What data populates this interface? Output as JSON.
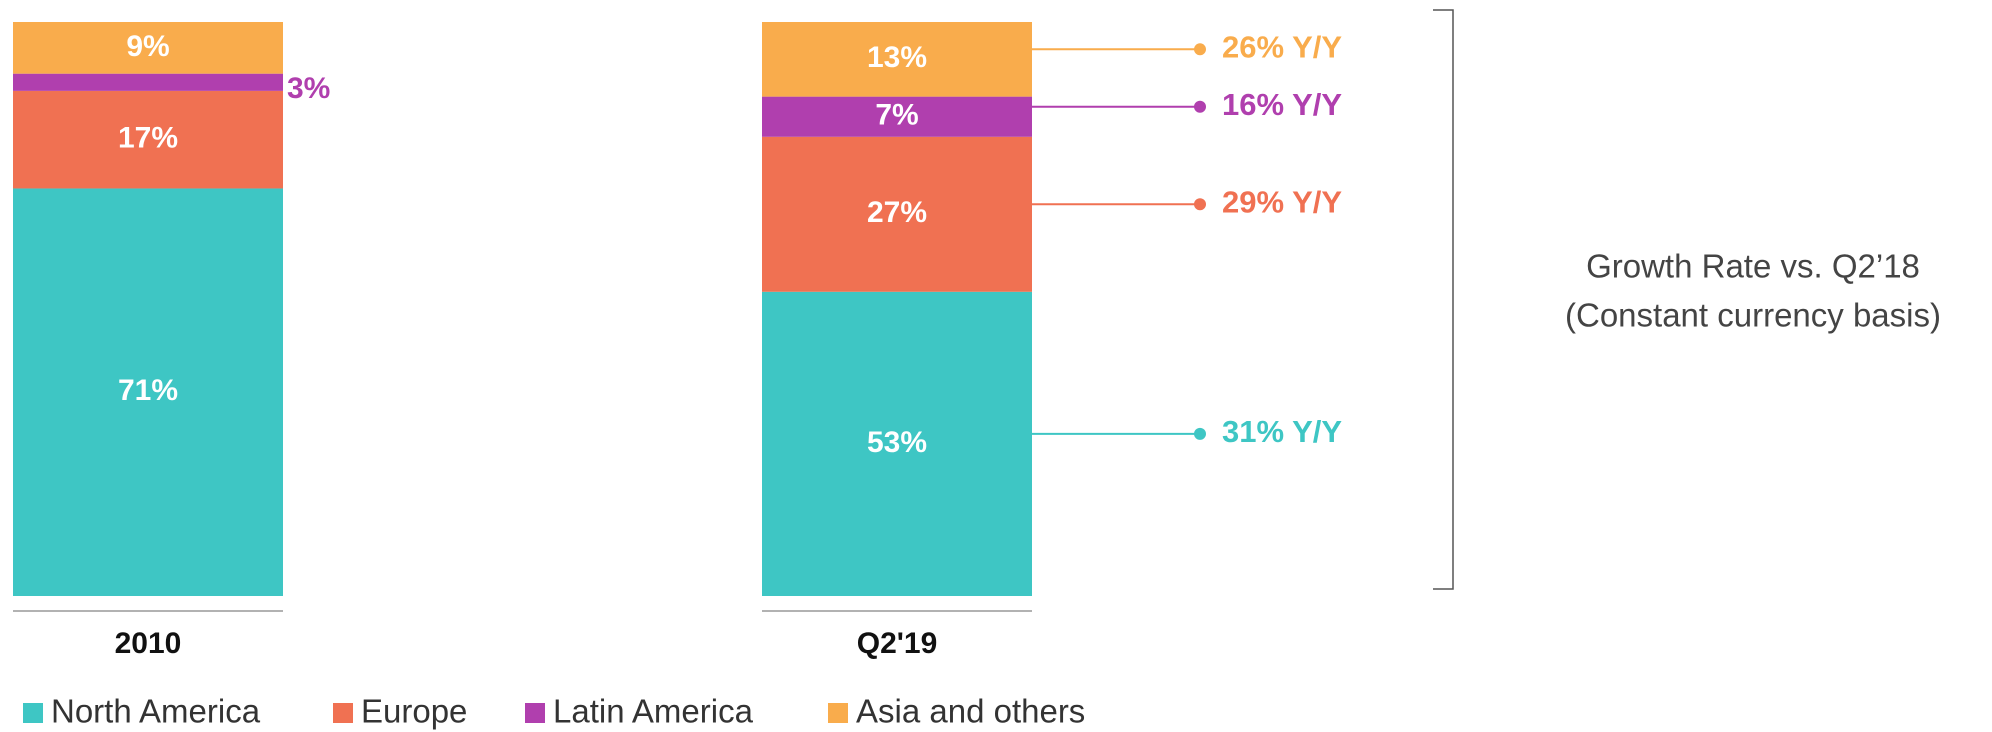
{
  "chart_data": {
    "type": "stacked_bar",
    "categories": [
      "2010",
      "Q2'19"
    ],
    "series": [
      {
        "name": "North America",
        "color": "#3ec6c4",
        "values": [
          71,
          53
        ],
        "value_labels": [
          "71%",
          "53%"
        ]
      },
      {
        "name": "Europe",
        "color": "#f07152",
        "values": [
          17,
          27
        ],
        "value_labels": [
          "17%",
          "27%"
        ]
      },
      {
        "name": "Latin America",
        "color": "#b03fae",
        "values": [
          3,
          7
        ],
        "value_labels": [
          "3%",
          "7%"
        ]
      },
      {
        "name": "Asia and others",
        "color": "#f9ac4c",
        "values": [
          9,
          13
        ],
        "value_labels": [
          "9%",
          "13%"
        ]
      }
    ],
    "annotations": [
      "31% Y/Y",
      "29% Y/Y",
      "16% Y/Y",
      "26% Y/Y"
    ],
    "bracket_label": [
      "Growth Rate vs. Q2’18",
      "(Constant currency basis)"
    ],
    "legend": "bottom-left"
  }
}
